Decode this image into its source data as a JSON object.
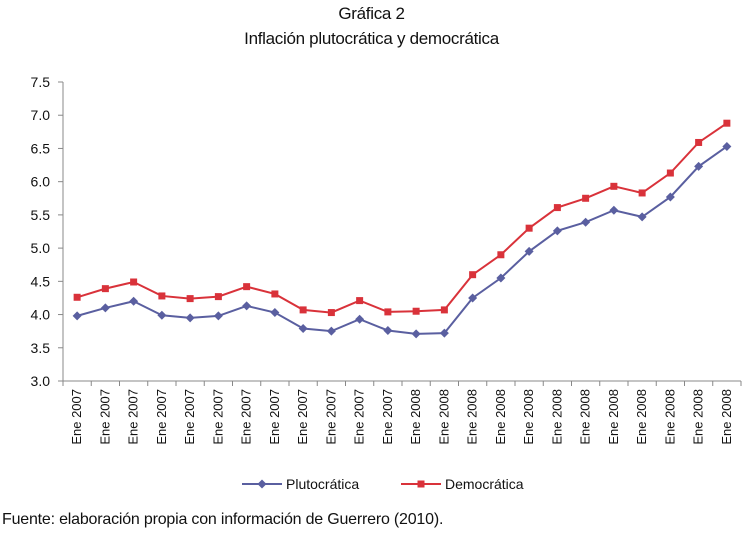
{
  "header": {
    "title": "Gráfica 2",
    "subtitle": "Inflación plutocrática y democrática"
  },
  "source_note": "Fuente: elaboración propia con información de Guerrero (2010).",
  "chart_data": {
    "type": "line",
    "title": "Inflación plutocrática y democrática",
    "xlabel": "",
    "ylabel": "",
    "ylim": [
      3.0,
      7.5
    ],
    "yticks": [
      "3.0",
      "3.5",
      "4.0",
      "4.5",
      "5.0",
      "5.5",
      "6.0",
      "6.5",
      "7.0",
      "7.5"
    ],
    "categories": [
      "Ene 2007",
      "Ene 2007",
      "Ene 2007",
      "Ene 2007",
      "Ene 2007",
      "Ene 2007",
      "Ene 2007",
      "Ene 2007",
      "Ene 2007",
      "Ene 2007",
      "Ene 2007",
      "Ene 2007",
      "Ene 2008",
      "Ene 2008",
      "Ene 2008",
      "Ene 2008",
      "Ene 2008",
      "Ene 2008",
      "Ene 2008",
      "Ene 2008",
      "Ene 2008",
      "Ene 2008",
      "Ene 2008",
      "Ene 2008"
    ],
    "grid": false,
    "legend_position": "bottom",
    "series": [
      {
        "name": "Plutocrática",
        "color": "#5a5fa0",
        "marker": "diamond",
        "values": [
          3.98,
          4.1,
          4.2,
          3.99,
          3.95,
          3.98,
          4.13,
          4.03,
          3.79,
          3.75,
          3.93,
          3.76,
          3.71,
          3.72,
          4.25,
          4.55,
          4.95,
          5.26,
          5.39,
          5.57,
          5.47,
          5.77,
          6.23,
          6.53
        ]
      },
      {
        "name": "Democrática",
        "color": "#d9323a",
        "marker": "square",
        "values": [
          4.26,
          4.39,
          4.49,
          4.28,
          4.24,
          4.27,
          4.42,
          4.31,
          4.07,
          4.03,
          4.21,
          4.04,
          4.05,
          4.07,
          4.6,
          4.9,
          5.3,
          5.61,
          5.75,
          5.93,
          5.83,
          6.13,
          6.59,
          6.88
        ]
      }
    ]
  }
}
